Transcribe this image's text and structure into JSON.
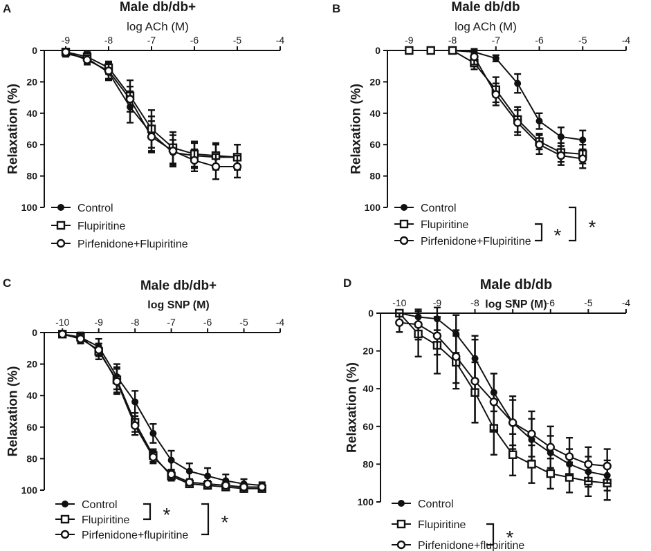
{
  "figure": {
    "panels": [
      {
        "letter": "A",
        "title": "Male db/db+",
        "xlabel": "log ACh (M)",
        "ylabel": "Relaxation (%)",
        "significance": []
      },
      {
        "letter": "B",
        "title": "Male db/db",
        "xlabel": "log ACh (M)",
        "ylabel": "Relaxation (%)",
        "significance": [
          {
            "between": [
              1,
              2
            ],
            "label": "*"
          },
          {
            "between": [
              0,
              2
            ],
            "label": "*"
          }
        ]
      },
      {
        "letter": "C",
        "title": "Male db/db+",
        "xlabel": "log SNP (M)",
        "ylabel": "Relaxation (%)",
        "significance": [
          {
            "between": [
              0,
              1
            ],
            "label": "*"
          },
          {
            "between": [
              0,
              2
            ],
            "label": "*"
          }
        ]
      },
      {
        "letter": "D",
        "title": "Male db/db",
        "xlabel": "log SNP (M)",
        "ylabel": "Relaxation (%)",
        "significance": [
          {
            "between": [
              1,
              2
            ],
            "label": "*"
          }
        ]
      }
    ]
  },
  "chart_data": [
    {
      "type": "line",
      "panel": "A",
      "title": "Male db/db+",
      "xlabel": "log ACh (M)",
      "ylabel": "Relaxation (%)",
      "xlim": [
        -9.5,
        -4
      ],
      "ylim": [
        0,
        100
      ],
      "y_inverted": true,
      "x_ticks": [
        -9,
        -8,
        -7,
        -6,
        -5,
        -4
      ],
      "y_ticks": [
        0,
        20,
        40,
        60,
        80,
        100
      ],
      "series": [
        {
          "name": "Control",
          "marker": "filled-circle",
          "x": [
            -9,
            -8.5,
            -8,
            -7.5,
            -7,
            -6.5,
            -6,
            -5.5,
            -5
          ],
          "y": [
            2,
            5,
            14,
            36,
            53,
            65,
            67,
            68,
            68
          ],
          "err": [
            2,
            3,
            5,
            10,
            11,
            8,
            8,
            8,
            8
          ]
        },
        {
          "name": "Flupiritine",
          "marker": "open-square",
          "x": [
            -9,
            -8.5,
            -8,
            -7.5,
            -7,
            -6.5,
            -6,
            -5.5,
            -5
          ],
          "y": [
            1,
            4,
            11,
            29,
            50,
            62,
            66,
            67,
            68
          ],
          "err": [
            2,
            3,
            4,
            10,
            12,
            10,
            8,
            8,
            8
          ]
        },
        {
          "name": "Pirfenidone+Flupiritine",
          "marker": "open-circle",
          "x": [
            -9,
            -8.5,
            -8,
            -7.5,
            -7,
            -6.5,
            -6,
            -5.5,
            -5
          ],
          "y": [
            1,
            6,
            13,
            31,
            55,
            64,
            70,
            74,
            74
          ],
          "err": [
            2,
            3,
            5,
            8,
            10,
            10,
            7,
            8,
            7
          ]
        }
      ]
    },
    {
      "type": "line",
      "panel": "B",
      "title": "Male db/db",
      "xlabel": "log ACh (M)",
      "ylabel": "Relaxation (%)",
      "xlim": [
        -9.5,
        -4
      ],
      "ylim": [
        0,
        100
      ],
      "y_inverted": true,
      "x_ticks": [
        -9,
        -8,
        -7,
        -6,
        -5,
        -4
      ],
      "y_ticks": [
        0,
        20,
        40,
        60,
        80,
        100
      ],
      "series": [
        {
          "name": "Control",
          "marker": "filled-circle",
          "x": [
            -8,
            -7.5,
            -7,
            -6.5,
            -6,
            -5.5,
            -5
          ],
          "y": [
            0,
            1,
            5,
            21,
            45,
            55,
            57
          ],
          "err": [
            0,
            1,
            2,
            6,
            5,
            6,
            6
          ]
        },
        {
          "name": "Flupiritine",
          "marker": "open-square",
          "x": [
            -9,
            -8.5,
            -8,
            -7.5,
            -7,
            -6.5,
            -6,
            -5.5,
            -5
          ],
          "y": [
            0,
            0,
            0,
            8,
            25,
            44,
            58,
            65,
            66
          ],
          "err": [
            0,
            0,
            0,
            4,
            8,
            8,
            5,
            6,
            6
          ]
        },
        {
          "name": "Pirfenidone+Flupiritine",
          "marker": "open-circle",
          "x": [
            -7.5,
            -7,
            -6.5,
            -6,
            -5.5,
            -5
          ],
          "y": [
            4,
            28,
            46,
            60,
            67,
            69
          ],
          "err": [
            5,
            7,
            8,
            6,
            6,
            6
          ]
        }
      ]
    },
    {
      "type": "line",
      "panel": "C",
      "title": "Male db/db+",
      "xlabel": "log SNP (M)",
      "ylabel": "Relaxation (%)",
      "xlim": [
        -10.5,
        -4
      ],
      "ylim": [
        0,
        100
      ],
      "y_inverted": true,
      "x_ticks": [
        -10,
        -9,
        -8,
        -7,
        -6,
        -5,
        -4
      ],
      "y_ticks": [
        0,
        20,
        40,
        60,
        80,
        100
      ],
      "series": [
        {
          "name": "Control",
          "marker": "filled-circle",
          "x": [
            -10,
            -9.5,
            -9,
            -8.5,
            -8,
            -7.5,
            -7,
            -6.5,
            -6,
            -5.5,
            -5,
            -4.5
          ],
          "y": [
            1,
            3,
            9,
            28,
            44,
            64,
            81,
            88,
            91,
            94,
            96,
            97
          ],
          "err": [
            2,
            3,
            5,
            8,
            7,
            6,
            6,
            5,
            5,
            4,
            3,
            2
          ]
        },
        {
          "name": "Flupiritine",
          "marker": "open-square",
          "x": [
            -10,
            -9.5,
            -9,
            -8.5,
            -8,
            -7.5,
            -7,
            -6.5,
            -6,
            -5.5,
            -5,
            -4.5
          ],
          "y": [
            1,
            3,
            12,
            30,
            57,
            78,
            91,
            96,
            97,
            98,
            99,
            99
          ],
          "err": [
            2,
            3,
            5,
            8,
            6,
            4,
            3,
            2,
            2,
            2,
            2,
            2
          ]
        },
        {
          "name": "Pirfenidone+flupiritine",
          "marker": "open-circle",
          "x": [
            -10,
            -9.5,
            -9,
            -8.5,
            -8,
            -7.5,
            -7,
            -6.5,
            -6,
            -5.5,
            -5,
            -4.5
          ],
          "y": [
            1,
            4,
            11,
            31,
            59,
            79,
            90,
            95,
            96,
            97,
            98,
            98
          ],
          "err": [
            2,
            3,
            4,
            8,
            6,
            4,
            3,
            2,
            2,
            2,
            2,
            2
          ]
        }
      ]
    },
    {
      "type": "line",
      "panel": "D",
      "title": "Male db/db",
      "xlabel": "log SNP (M)",
      "ylabel": "Relaxation (%)",
      "xlim": [
        -10.5,
        -4
      ],
      "ylim": [
        0,
        100
      ],
      "y_inverted": true,
      "x_ticks": [
        -10,
        -9,
        -8,
        -7,
        -6,
        -5,
        -4
      ],
      "y_ticks": [
        0,
        20,
        40,
        60,
        80,
        100
      ],
      "series": [
        {
          "name": "Control",
          "marker": "filled-circle",
          "x": [
            -10,
            -9.5,
            -9,
            -8.5,
            -8,
            -7.5,
            -7,
            -6.5,
            -6,
            -5.5,
            -5,
            -4.5
          ],
          "y": [
            0,
            2,
            3,
            11,
            24,
            42,
            58,
            67,
            74,
            80,
            84,
            86
          ],
          "err": [
            0,
            3,
            6,
            10,
            12,
            10,
            12,
            11,
            9,
            8,
            8,
            8
          ]
        },
        {
          "name": "Flupiritine",
          "marker": "open-square",
          "x": [
            -10,
            -9.5,
            -9,
            -8.5,
            -8,
            -7.5,
            -7,
            -6.5,
            -6,
            -5.5,
            -5,
            -4.5
          ],
          "y": [
            0,
            11,
            17,
            26,
            42,
            61,
            75,
            80,
            85,
            87,
            89,
            90
          ],
          "err": [
            0,
            12,
            15,
            14,
            16,
            14,
            11,
            10,
            8,
            8,
            8,
            9
          ]
        },
        {
          "name": "Pirfenidone+flupiritine",
          "marker": "open-circle",
          "x": [
            -10,
            -9.5,
            -9,
            -8.5,
            -8,
            -7.5,
            -7,
            -6.5,
            -6,
            -5.5,
            -5,
            -4.5
          ],
          "y": [
            5,
            6,
            12,
            23,
            36,
            47,
            58,
            64,
            71,
            76,
            80,
            81
          ],
          "err": [
            5,
            8,
            10,
            14,
            22,
            15,
            14,
            12,
            11,
            10,
            9,
            9
          ]
        }
      ]
    }
  ]
}
